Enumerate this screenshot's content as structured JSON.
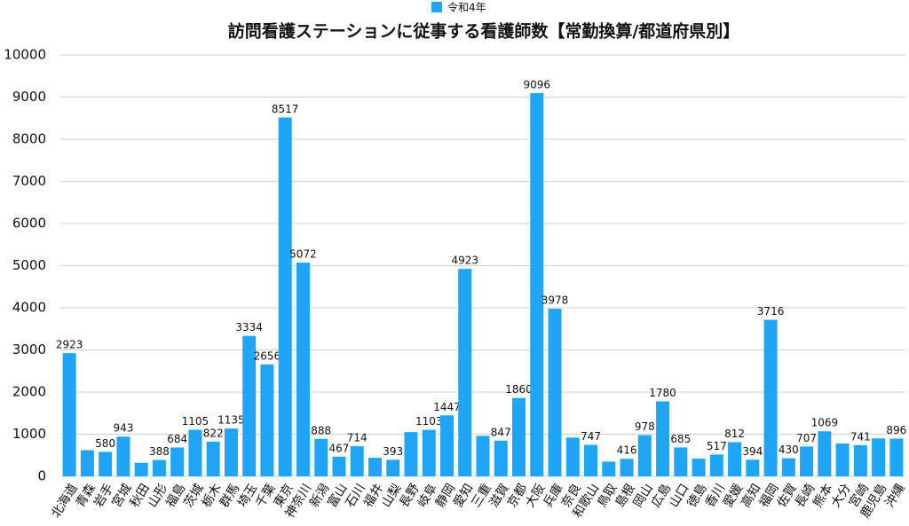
{
  "chart_data": {
    "type": "bar",
    "title": "訪問看護ステーションに従事する看護師数【常勤換算/都道府県別】",
    "categories": [
      "北海道",
      "青森",
      "岩手",
      "宮城",
      "秋田",
      "山形",
      "福島",
      "茨城",
      "栃木",
      "群馬",
      "埼玉",
      "千葉",
      "東京",
      "神奈川",
      "新潟",
      "富山",
      "石川",
      "福井",
      "山梨",
      "長野",
      "岐阜",
      "静岡",
      "愛知",
      "三重",
      "滋賀",
      "京都",
      "大阪",
      "兵庫",
      "奈良",
      "和歌山",
      "鳥取",
      "島根",
      "岡山",
      "広島",
      "山口",
      "徳島",
      "香川",
      "愛媛",
      "高知",
      "福岡",
      "佐賀",
      "長崎",
      "熊本",
      "大分",
      "宮崎",
      "鹿児島",
      "沖縄"
    ],
    "series": [
      {
        "name": "令和4年",
        "color": "#1ea5f5",
        "values": [
          2923,
          620,
          580,
          943,
          320,
          388,
          684,
          1105,
          822,
          1135,
          3334,
          2656,
          8517,
          5072,
          888,
          467,
          714,
          440,
          393,
          1050,
          1103,
          1447,
          4923,
          960,
          847,
          1860,
          9096,
          3978,
          920,
          747,
          350,
          416,
          978,
          1780,
          685,
          420,
          517,
          812,
          394,
          3716,
          430,
          707,
          1069,
          780,
          741,
          900,
          896
        ],
        "value_labels": [
          "2923",
          null,
          "580",
          "943",
          null,
          "388",
          "684",
          "1105",
          "822",
          "1135",
          "3334",
          "2656",
          "8517",
          "5072",
          "888",
          "467",
          "714",
          null,
          "393",
          null,
          "1103",
          "1447",
          "4923",
          null,
          "847",
          "1860",
          "9096",
          "3978",
          null,
          "747",
          null,
          "416",
          "978",
          "1780",
          "685",
          null,
          "517",
          "812",
          "394",
          "3716",
          "430",
          "707",
          "1069",
          null,
          "741",
          null,
          "896"
        ]
      }
    ],
    "ylim": [
      0,
      10000
    ],
    "yticks": [
      0,
      1000,
      2000,
      3000,
      4000,
      5000,
      6000,
      7000,
      8000,
      9000,
      10000
    ],
    "grid": true,
    "legend": "top"
  }
}
